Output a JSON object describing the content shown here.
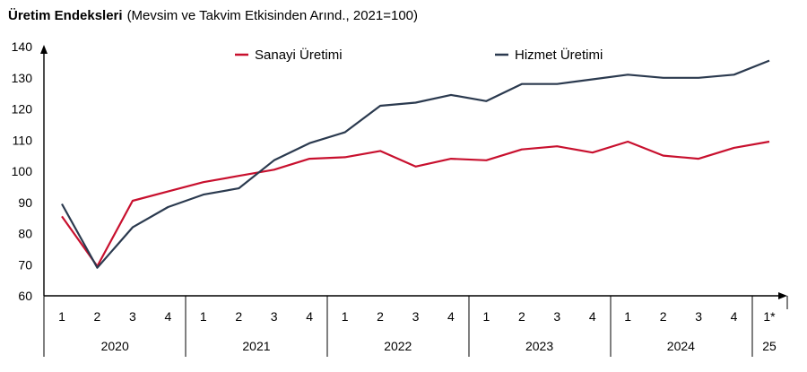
{
  "chart_data": {
    "type": "line",
    "title": "Üretim Endeksleri",
    "subtitle": "(Mevsim ve Takvim Etkisinden Arınd., 2021=100)",
    "xlabel": "",
    "ylabel": "",
    "ylim": [
      60,
      140
    ],
    "yticks": [
      60,
      70,
      80,
      90,
      100,
      110,
      120,
      130,
      140
    ],
    "grid": false,
    "legend_position": "top",
    "quarters": [
      "1",
      "2",
      "3",
      "4",
      "1",
      "2",
      "3",
      "4",
      "1",
      "2",
      "3",
      "4",
      "1",
      "2",
      "3",
      "4",
      "1",
      "2",
      "3",
      "4",
      "1*"
    ],
    "years": [
      {
        "label": "2020",
        "span": 4
      },
      {
        "label": "2021",
        "span": 4
      },
      {
        "label": "2022",
        "span": 4
      },
      {
        "label": "2023",
        "span": 4
      },
      {
        "label": "2024",
        "span": 4
      },
      {
        "label": "25",
        "span": 1
      }
    ],
    "series": [
      {
        "name": "Sanayi Üretimi",
        "color": "#c8102e",
        "values": [
          85.5,
          69.5,
          90.5,
          93.5,
          96.5,
          98.5,
          100.5,
          104.0,
          104.5,
          106.5,
          101.5,
          104.0,
          103.5,
          107.0,
          108.0,
          106.0,
          109.5,
          105.0,
          104.0,
          107.5,
          109.5
        ]
      },
      {
        "name": "Hizmet Üretimi",
        "color": "#2b3a4f",
        "values": [
          89.5,
          69.0,
          82.0,
          88.5,
          92.5,
          94.5,
          103.5,
          109.0,
          112.5,
          121.0,
          122.0,
          124.5,
          122.5,
          128.0,
          128.0,
          129.5,
          131.0,
          130.0,
          130.0,
          131.0,
          135.5
        ]
      }
    ]
  }
}
